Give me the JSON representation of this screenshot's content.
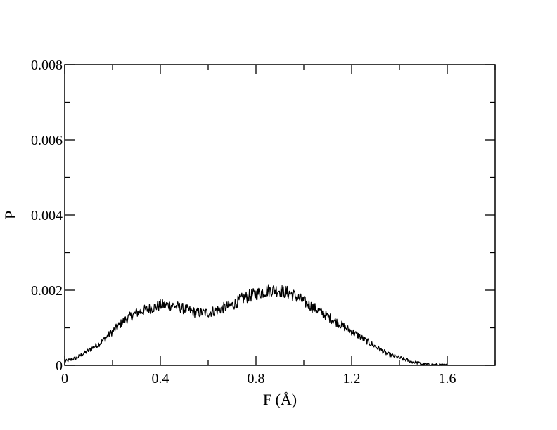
{
  "chart_data": {
    "type": "line",
    "xlabel": "F (Å)",
    "ylabel": "P",
    "xlim": [
      0,
      1.8
    ],
    "ylim": [
      0,
      0.008
    ],
    "xticks": [
      0,
      0.4,
      0.8,
      1.2,
      1.6
    ],
    "xtick_labels": [
      "0",
      "0.4",
      "0.8",
      "1.2",
      "1.6"
    ],
    "yticks": [
      0,
      0.002,
      0.004,
      0.006,
      0.008
    ],
    "ytick_labels": [
      "0",
      "0.002",
      "0.004",
      "0.006",
      "0.008"
    ],
    "grid": false,
    "series": [
      {
        "color": "#000000",
        "x": [
          0.0,
          0.05,
          0.1,
          0.15,
          0.2,
          0.25,
          0.3,
          0.35,
          0.4,
          0.45,
          0.5,
          0.55,
          0.6,
          0.65,
          0.7,
          0.75,
          0.8,
          0.85,
          0.9,
          0.95,
          1.0,
          1.05,
          1.1,
          1.15,
          1.2,
          1.25,
          1.3,
          1.35,
          1.4,
          1.45,
          1.5,
          1.55,
          1.6
        ],
        "y": [
          0.0001,
          0.0002,
          0.0004,
          0.0006,
          0.0009,
          0.0012,
          0.0014,
          0.0015,
          0.0016,
          0.0016,
          0.0015,
          0.0014,
          0.0014,
          0.0015,
          0.0016,
          0.0018,
          0.0019,
          0.002,
          0.002,
          0.0019,
          0.0017,
          0.0015,
          0.0013,
          0.0011,
          0.0009,
          0.0007,
          0.0005,
          0.0003,
          0.0002,
          0.0001,
          3e-05,
          1e-05,
          0.0
        ]
      }
    ]
  }
}
